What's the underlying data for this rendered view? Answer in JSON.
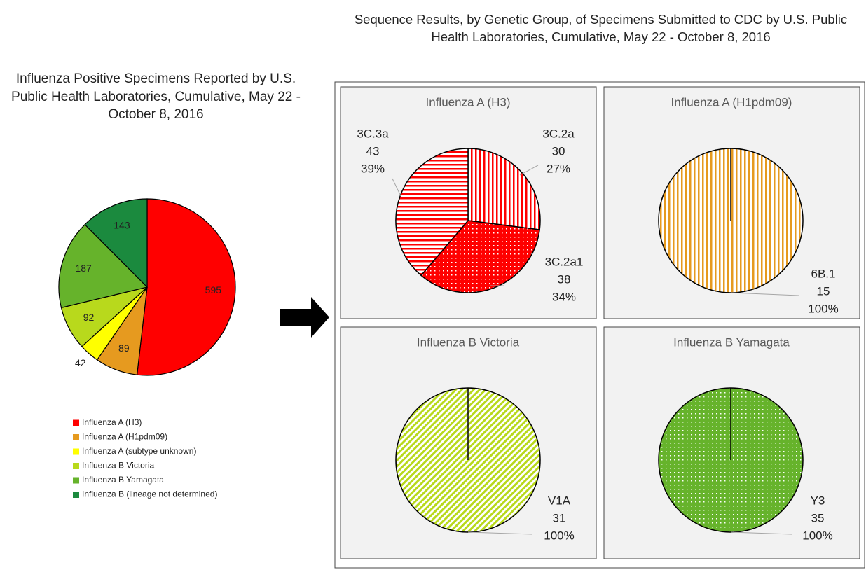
{
  "group_title": "Sequence Results, by Genetic Group, of Specimens Submitted to CDC by U.S. Public Health Laboratories, Cumulative, May 22 - October 8, 2016",
  "chart_data": [
    {
      "type": "pie",
      "title": "Influenza Positive Specimens Reported by U.S. Public Health Laboratories, Cumulative, May 22 - October 8, 2016",
      "categories": [
        "Influenza A (H3)",
        "Influenza A (H1pdm09)",
        "Influenza A (subtype unknown)",
        "Influenza B Victoria",
        "Influenza B Yamagata",
        "Influenza B (lineage not determined)"
      ],
      "values": [
        595,
        89,
        42,
        92,
        187,
        143
      ],
      "colors": [
        "#ff0000",
        "#e69a1f",
        "#ffff00",
        "#b8d91c",
        "#66b32b",
        "#1b8a3e"
      ],
      "legend": "bottom"
    },
    {
      "type": "pie",
      "title": "Influenza A (H3)",
      "categories": [
        "3C.2a",
        "3C.2a1",
        "3C.3a"
      ],
      "values": [
        30,
        38,
        43
      ],
      "percent_labels": [
        "27%",
        "34%",
        "39%"
      ],
      "color": "#ff0000",
      "patterns": [
        "vertical",
        "dots",
        "horizontal"
      ]
    },
    {
      "type": "pie",
      "title": "Influenza A (H1pdm09)",
      "categories": [
        "6B.1"
      ],
      "values": [
        15
      ],
      "percent_labels": [
        "100%"
      ],
      "color": "#e69a1f",
      "patterns": [
        "vertical"
      ]
    },
    {
      "type": "pie",
      "title": "Influenza B Victoria",
      "categories": [
        "V1A"
      ],
      "values": [
        31
      ],
      "percent_labels": [
        "100%"
      ],
      "color": "#b8d91c",
      "patterns": [
        "diagonal"
      ]
    },
    {
      "type": "pie",
      "title": "Influenza B Yamagata",
      "categories": [
        "Y3"
      ],
      "values": [
        35
      ],
      "percent_labels": [
        "100%"
      ],
      "color": "#66b32b",
      "patterns": [
        "dots"
      ]
    }
  ]
}
